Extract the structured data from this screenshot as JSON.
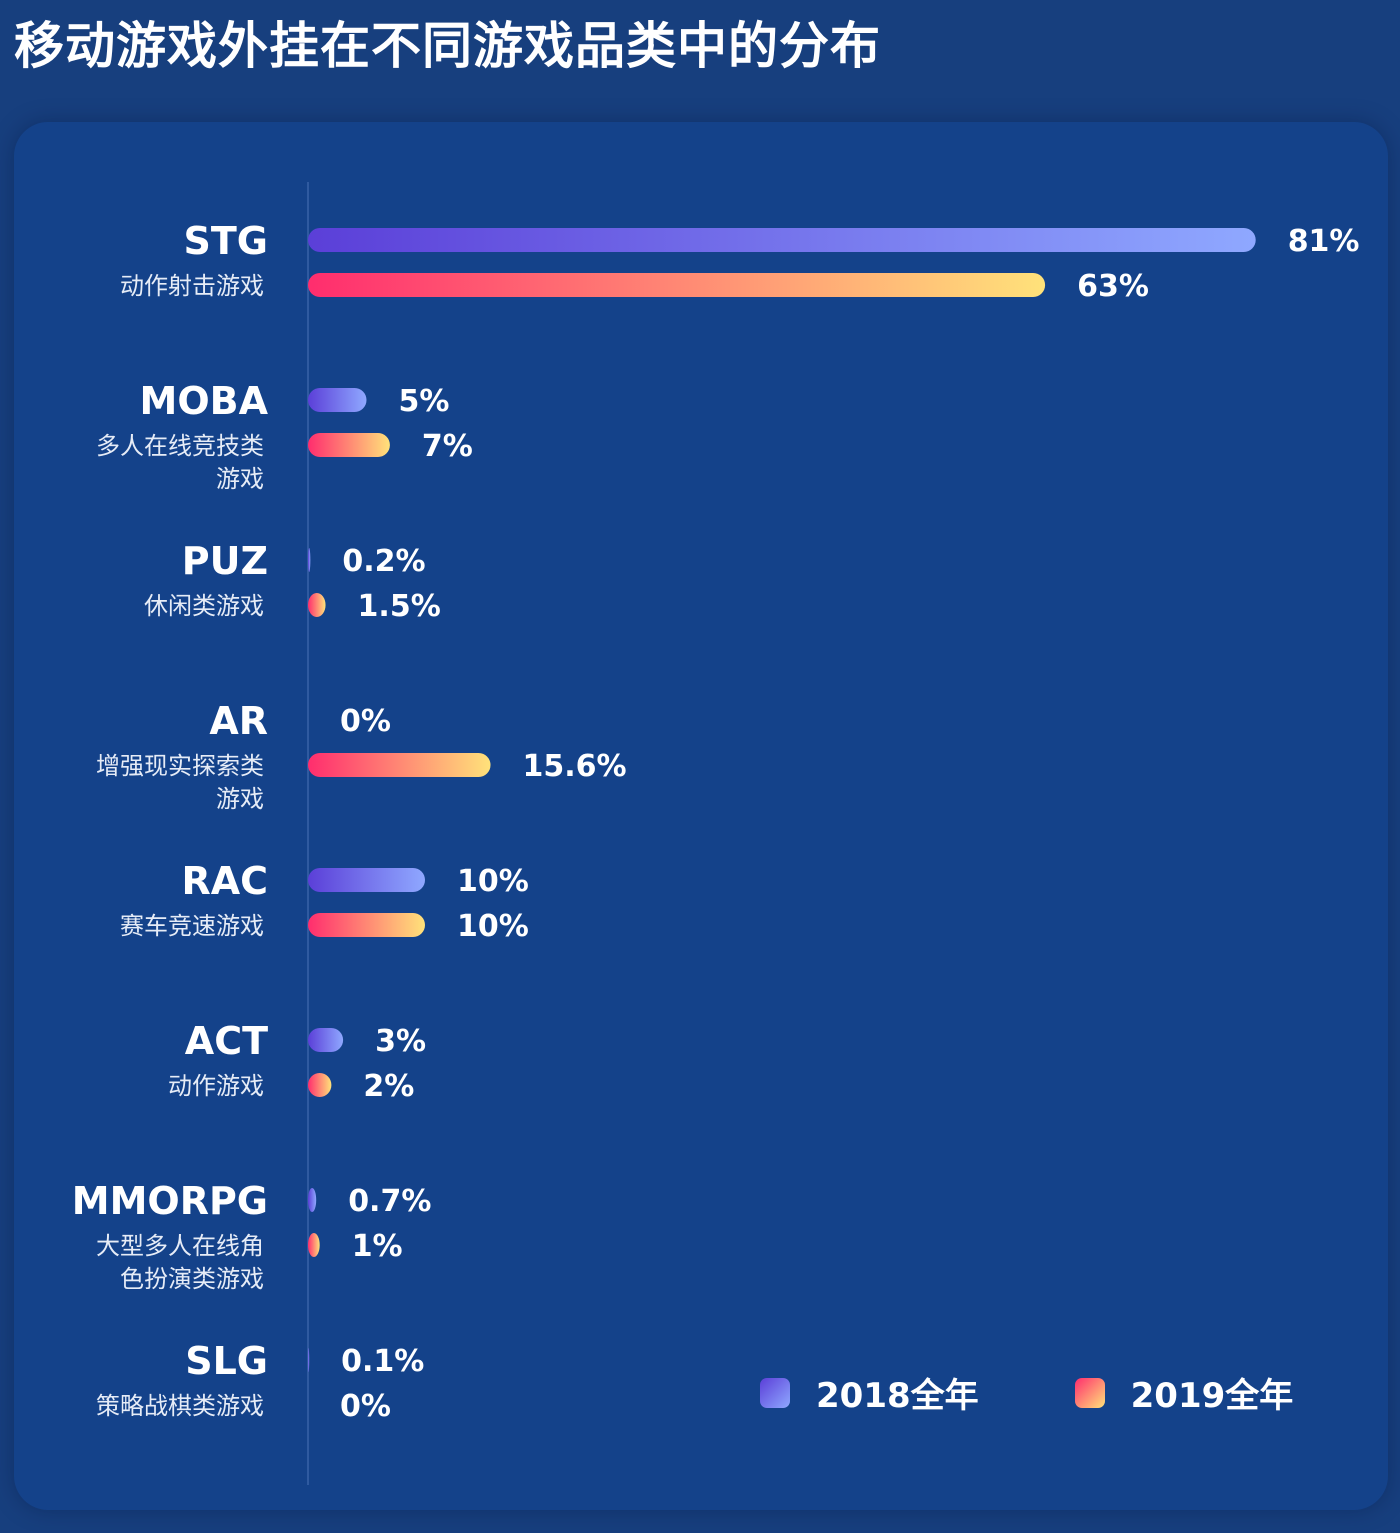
{
  "title": "移动游戏外挂在不同游戏品类中的分布",
  "colors": {
    "series_2018_start": "#5b3fd8",
    "series_2018_end": "#8fa8ff",
    "series_2019_start": "#ff2d6e",
    "series_2019_end": "#ffe27a",
    "background": "#173f7e",
    "panel": "#14428a"
  },
  "legend": {
    "placement": "bottom-right",
    "items": [
      "2018全年",
      "2019全年"
    ]
  },
  "chart_data": {
    "type": "bar",
    "orientation": "horizontal",
    "title": "移动游戏外挂在不同游戏品类中的分布",
    "xlim": [
      0,
      81
    ],
    "grid": false,
    "categories": [
      {
        "code": "STG",
        "name_lines": [
          "动作射击游戏"
        ]
      },
      {
        "code": "MOBA",
        "name_lines": [
          "多人在线竞技类",
          "游戏"
        ]
      },
      {
        "code": "PUZ",
        "name_lines": [
          "休闲类游戏"
        ]
      },
      {
        "code": "AR",
        "name_lines": [
          "增强现实探索类",
          "游戏"
        ]
      },
      {
        "code": "RAC",
        "name_lines": [
          "赛车竞速游戏"
        ]
      },
      {
        "code": "ACT",
        "name_lines": [
          "动作游戏"
        ]
      },
      {
        "code": "MMORPG",
        "name_lines": [
          "大型多人在线角",
          "色扮演类游戏"
        ]
      },
      {
        "code": "SLG",
        "name_lines": [
          "策略战棋类游戏"
        ]
      }
    ],
    "series": [
      {
        "name": "2018全年",
        "values": [
          81,
          5,
          0.2,
          0,
          10,
          3,
          0.7,
          0.1
        ],
        "labels": [
          "81%",
          "5%",
          "0.2%",
          "0%",
          "10%",
          "3%",
          "0.7%",
          "0.1%"
        ]
      },
      {
        "name": "2019全年",
        "values": [
          63,
          7,
          1.5,
          15.6,
          10,
          2,
          1,
          0
        ],
        "labels": [
          "63%",
          "7%",
          "1.5%",
          "15.6%",
          "10%",
          "2%",
          "1%",
          "0%"
        ]
      }
    ]
  }
}
